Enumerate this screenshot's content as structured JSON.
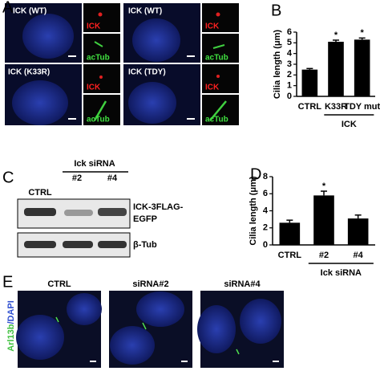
{
  "panels": {
    "a": "A",
    "b": "B",
    "c": "C",
    "d": "D",
    "e": "E"
  },
  "panel_a": {
    "images": [
      {
        "title": "ICK (WT)",
        "top_inset": "ICK",
        "bottom_inset": "acTub"
      },
      {
        "title": "ICK (WT)",
        "top_inset": "ICK",
        "bottom_inset": "acTub"
      },
      {
        "title": "ICK (K33R)",
        "top_inset": "ICK",
        "bottom_inset": "acTub"
      },
      {
        "title": "ICK (TDY)",
        "top_inset": "ICK",
        "bottom_inset": "acTub"
      }
    ]
  },
  "panel_c": {
    "group_label": "Ick siRNA",
    "lanes": [
      "CTRL",
      "#2",
      "#4"
    ],
    "blot_labels": [
      "ICK-3FLAG-",
      "EGFP",
      "β-Tub"
    ]
  },
  "panel_e": {
    "side_label": [
      "Arl13b",
      "/DAPI"
    ],
    "images": [
      "CTRL",
      "siRNA#2",
      "siRNA#4"
    ]
  },
  "chart_data": [
    {
      "type": "bar",
      "y_label": "Cilia length (μm)",
      "categories": [
        "CTRL",
        "K33R",
        "TDY mut"
      ],
      "group_label": "ICK",
      "values": [
        2.5,
        5.1,
        5.3
      ],
      "errors": [
        0.1,
        0.15,
        0.15
      ],
      "color": "#000000",
      "ylim": [
        0,
        6
      ],
      "yticks": [
        0,
        1,
        2,
        3,
        4,
        5,
        6
      ],
      "annotations": [
        {
          "text": "*",
          "category": "K33R"
        },
        {
          "text": "*",
          "category": "TDY mut"
        }
      ]
    },
    {
      "type": "bar",
      "y_label": "Cilia length (μm)",
      "categories": [
        "CTRL",
        "#2",
        "#4"
      ],
      "group_label": "Ick siRNA",
      "values": [
        2.6,
        5.8,
        3.1
      ],
      "errors": [
        0.3,
        0.5,
        0.4
      ],
      "color": "#000000",
      "ylim": [
        0,
        8
      ],
      "yticks": [
        0,
        2,
        4,
        6,
        8
      ],
      "annotations": [
        {
          "text": "*",
          "category": "#2"
        }
      ]
    }
  ]
}
